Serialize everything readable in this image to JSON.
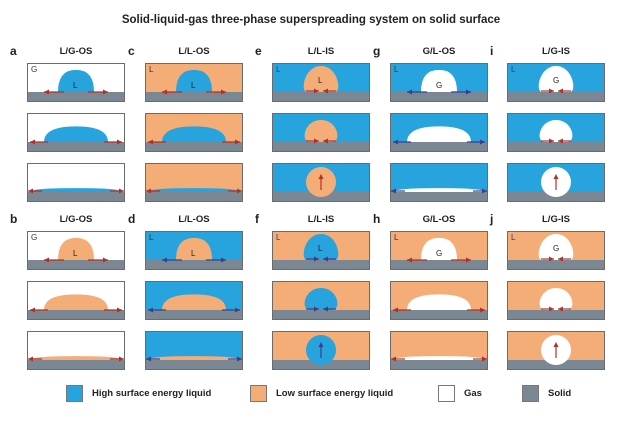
{
  "title": "Solid-liquid-gas three-phase superspreading system on solid surface",
  "colors": {
    "high_liquid": "#27a3dd",
    "low_liquid": "#f5ad78",
    "gas": "#ffffff",
    "solid": "#7b8893",
    "arrow_red": "#b0302a",
    "arrow_navy": "#3a3f8c"
  },
  "columns": [
    {
      "letter_top": "a",
      "title_top": "L/G-OS",
      "letter_bottom": "b",
      "title_bottom": "L/G-OS"
    },
    {
      "letter_top": "c",
      "title_top": "L/L-OS",
      "letter_bottom": "d",
      "title_bottom": "L/L-OS"
    },
    {
      "letter_top": "e",
      "title_top": "L/L-IS",
      "letter_bottom": "f",
      "title_bottom": "L/L-IS"
    },
    {
      "letter_top": "g",
      "title_top": "G/L-OS",
      "letter_bottom": "h",
      "title_bottom": "G/L-OS"
    },
    {
      "letter_top": "i",
      "title_top": "L/G-IS",
      "letter_bottom": "j",
      "title_bottom": "L/G-IS"
    }
  ],
  "panels": {
    "a": {
      "ambient": "gas",
      "drop": "high_liquid",
      "mode": "OS",
      "ambient_label": "G",
      "drop_label": "L",
      "arrow": "arrow_red"
    },
    "c": {
      "ambient": "low_liquid",
      "drop": "high_liquid",
      "mode": "OS",
      "ambient_label": "L",
      "drop_label": "L",
      "arrow": "arrow_red"
    },
    "e": {
      "ambient": "high_liquid",
      "drop": "low_liquid",
      "mode": "IS",
      "ambient_label": "L",
      "drop_label": "L",
      "arrow": "arrow_red"
    },
    "g": {
      "ambient": "high_liquid",
      "drop": "gas",
      "mode": "OS",
      "ambient_label": "L",
      "drop_label": "G",
      "arrow": "arrow_navy"
    },
    "i": {
      "ambient": "high_liquid",
      "drop": "gas",
      "mode": "IS",
      "ambient_label": "L",
      "drop_label": "G",
      "arrow": "arrow_red"
    },
    "b": {
      "ambient": "gas",
      "drop": "low_liquid",
      "mode": "OS",
      "ambient_label": "G",
      "drop_label": "L",
      "arrow": "arrow_red"
    },
    "d": {
      "ambient": "high_liquid",
      "drop": "low_liquid",
      "mode": "OS",
      "ambient_label": "L",
      "drop_label": "L",
      "arrow": "arrow_navy"
    },
    "f": {
      "ambient": "low_liquid",
      "drop": "high_liquid",
      "mode": "IS",
      "ambient_label": "L",
      "drop_label": "L",
      "arrow": "arrow_navy"
    },
    "h": {
      "ambient": "low_liquid",
      "drop": "gas",
      "mode": "OS",
      "ambient_label": "L",
      "drop_label": "G",
      "arrow": "arrow_red"
    },
    "j": {
      "ambient": "low_liquid",
      "drop": "gas",
      "mode": "IS",
      "ambient_label": "L",
      "drop_label": "G",
      "arrow": "arrow_red"
    }
  },
  "legend": [
    {
      "label": "High surface energy liquid",
      "color": "high_liquid"
    },
    {
      "label": "Low surface energy liquid",
      "color": "low_liquid"
    },
    {
      "label": "Gas",
      "color": "gas"
    },
    {
      "label": "Solid",
      "color": "solid"
    }
  ]
}
